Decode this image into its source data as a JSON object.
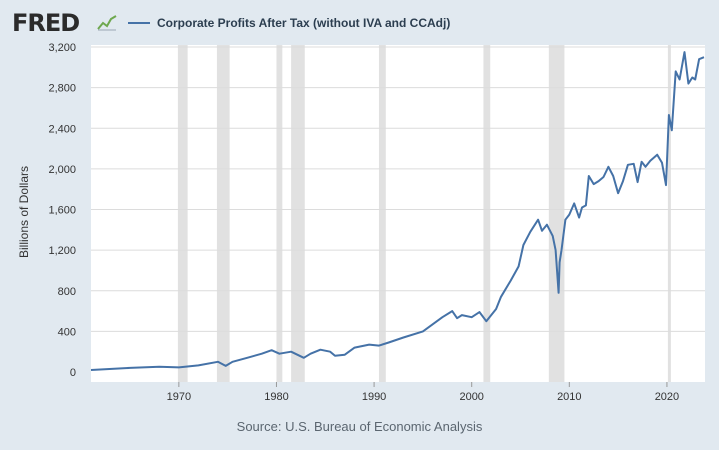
{
  "header": {
    "logo_text": "FRED",
    "logo_icon": "trend-line-icon"
  },
  "colors": {
    "background": "#e1e9f0",
    "plot_background": "#ffffff",
    "series_line": "#4572a7",
    "recession_band": "#e1e1e1",
    "gridline": "#dcdcdc"
  },
  "chart_data": {
    "type": "line",
    "title": "",
    "ylabel": "Billions of Dollars",
    "xlabel": "",
    "ylim": [
      0,
      3200
    ],
    "xlim": [
      1961.0,
      2023.9
    ],
    "y_ticks": [
      0,
      400,
      800,
      1200,
      1600,
      2000,
      2400,
      2800,
      3200
    ],
    "y_tick_labels": [
      "0",
      "400",
      "800",
      "1,200",
      "1,600",
      "2,000",
      "2,400",
      "2,800",
      "3,200"
    ],
    "x_ticks": [
      1970,
      1980,
      1990,
      2000,
      2010,
      2020
    ],
    "x_tick_labels": [
      "1970",
      "1980",
      "1990",
      "2000",
      "2010",
      "2020"
    ],
    "grid": "horizontal",
    "legend_position": "top-left",
    "recessions": [
      [
        1969.9,
        1970.9
      ],
      [
        1973.9,
        1975.2
      ],
      [
        1980.0,
        1980.6
      ],
      [
        1981.5,
        1982.9
      ],
      [
        1990.5,
        1991.2
      ],
      [
        2001.2,
        2001.9
      ],
      [
        2007.9,
        2009.5
      ],
      [
        2020.1,
        2020.4
      ]
    ],
    "series": [
      {
        "name": "Corporate Profits After Tax (without IVA and CCAdj)",
        "x": [
          1961.0,
          1965.0,
          1968.0,
          1970.0,
          1972.0,
          1974.0,
          1974.8,
          1975.5,
          1977.0,
          1978.5,
          1979.5,
          1980.3,
          1981.5,
          1982.8,
          1983.5,
          1984.5,
          1985.5,
          1986.0,
          1987.0,
          1988.0,
          1989.5,
          1990.5,
          1991.5,
          1993.0,
          1995.0,
          1997.0,
          1998.0,
          1998.5,
          1999.0,
          2000.0,
          2000.8,
          2001.5,
          2002.5,
          2003.0,
          2004.0,
          2004.8,
          2005.3,
          2006.0,
          2006.8,
          2007.2,
          2007.7,
          2008.3,
          2008.6,
          2008.9,
          2009.0,
          2009.2,
          2009.6,
          2010.0,
          2010.5,
          2011.0,
          2011.3,
          2011.7,
          2012.0,
          2012.5,
          2013.0,
          2013.5,
          2014.0,
          2014.5,
          2015.0,
          2015.5,
          2016.0,
          2016.6,
          2017.0,
          2017.4,
          2017.8,
          2018.3,
          2019.0,
          2019.5,
          2019.9,
          2020.2,
          2020.5,
          2020.9,
          2021.3,
          2021.8,
          2022.2,
          2022.6,
          2022.9,
          2023.3,
          2023.8
        ],
        "values": [
          20,
          40,
          52,
          45,
          65,
          100,
          60,
          100,
          140,
          180,
          215,
          180,
          200,
          140,
          180,
          220,
          200,
          160,
          170,
          240,
          270,
          260,
          290,
          340,
          400,
          540,
          600,
          530,
          560,
          540,
          590,
          500,
          620,
          740,
          900,
          1040,
          1250,
          1380,
          1500,
          1390,
          1450,
          1340,
          1200,
          780,
          1080,
          1200,
          1500,
          1550,
          1660,
          1520,
          1620,
          1640,
          1930,
          1850,
          1880,
          1920,
          2020,
          1930,
          1760,
          1880,
          2040,
          2050,
          1870,
          2070,
          2020,
          2080,
          2140,
          2060,
          1840,
          2530,
          2380,
          2960,
          2880,
          3150,
          2840,
          2900,
          2880,
          3080,
          3100
        ]
      }
    ]
  },
  "source": {
    "text": "Source: U.S. Bureau of Economic Analysis"
  }
}
